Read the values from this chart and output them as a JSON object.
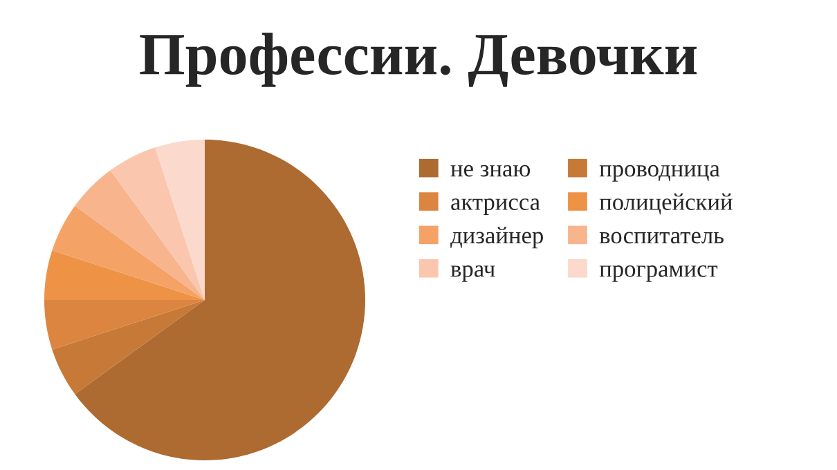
{
  "chart_data": {
    "type": "pie",
    "title": "Профессии. Девочки",
    "categories": [
      "не знаю",
      "проводница",
      "актрисса",
      "полицейский",
      "дизайнер",
      "воспитатель",
      "врач",
      "програмист"
    ],
    "values": [
      65,
      5,
      5,
      5,
      5,
      5,
      5,
      5
    ],
    "colors": [
      "#ad6a31",
      "#c77937",
      "#dc8540",
      "#ee9246",
      "#f5a267",
      "#f8b58d",
      "#fac7ae",
      "#fbd9cc"
    ],
    "legend": "right"
  }
}
